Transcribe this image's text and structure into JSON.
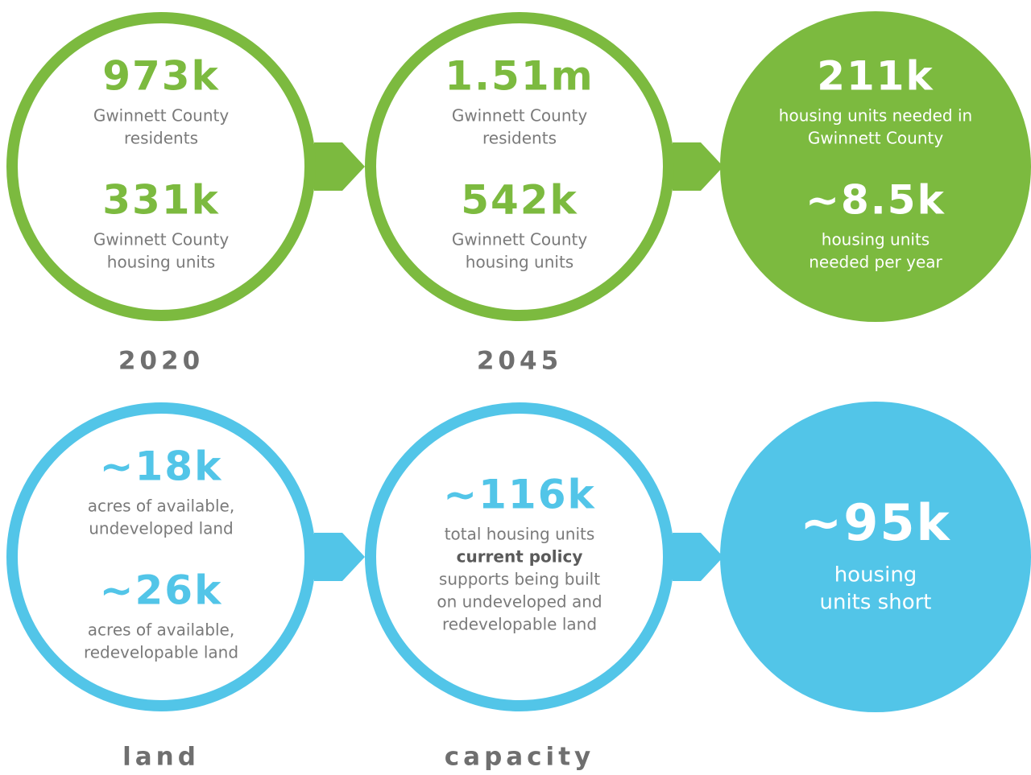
{
  "rows": [
    {
      "color": "#7cba3f",
      "circles": [
        {
          "stats": [
            {
              "value": "973k",
              "lines": [
                "Gwinnett County",
                "residents"
              ]
            },
            {
              "value": "331k",
              "lines": [
                "Gwinnett County",
                "housing units"
              ]
            }
          ]
        },
        {
          "stats": [
            {
              "value": "1.51m",
              "lines": [
                "Gwinnett County",
                "residents"
              ]
            },
            {
              "value": "542k",
              "lines": [
                "Gwinnett County",
                "housing units"
              ]
            }
          ]
        },
        {
          "filled": true,
          "stats": [
            {
              "value": "211k",
              "lines": [
                "housing units needed in",
                "Gwinnett County"
              ]
            },
            {
              "value": "~8.5k",
              "lines": [
                "housing units",
                "needed per year"
              ]
            }
          ]
        }
      ],
      "labels": [
        "2020",
        "2045"
      ]
    },
    {
      "color": "#52c5e8",
      "circles": [
        {
          "stats": [
            {
              "value": "~18k",
              "lines": [
                "acres of available,",
                "undeveloped land"
              ]
            },
            {
              "value": "~26k",
              "lines": [
                "acres of available,",
                "redevelopable land"
              ]
            }
          ]
        },
        {
          "stats": [
            {
              "value": "~116k",
              "lines": [
                "total housing units",
                {
                  "text": "current policy",
                  "bold": true
                },
                "supports being built",
                "on undeveloped and",
                "redevelopable land"
              ]
            }
          ]
        },
        {
          "filled": true,
          "big": true,
          "stats": [
            {
              "value": "~95k",
              "lines": [
                "housing",
                "units short"
              ]
            }
          ]
        }
      ],
      "labels": [
        "land",
        "capacity"
      ]
    }
  ]
}
